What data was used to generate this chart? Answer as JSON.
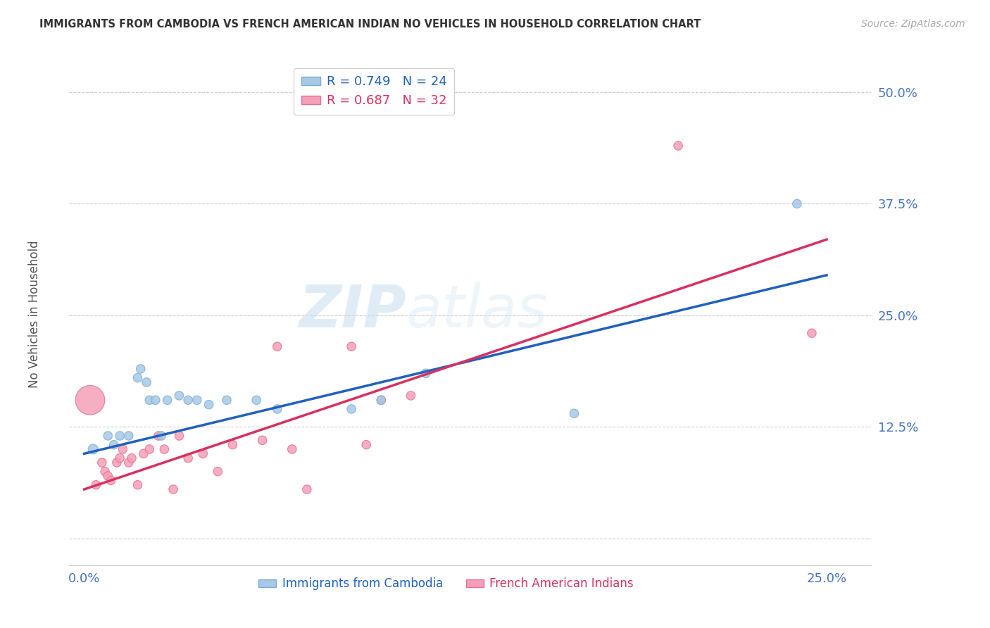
{
  "title": "IMMIGRANTS FROM CAMBODIA VS FRENCH AMERICAN INDIAN NO VEHICLES IN HOUSEHOLD CORRELATION CHART",
  "source": "Source: ZipAtlas.com",
  "xlabel_ticks": [
    0.0,
    0.05,
    0.1,
    0.15,
    0.2,
    0.25
  ],
  "xlabel_tick_labels": [
    "0.0%",
    "",
    "",
    "",
    "",
    "25.0%"
  ],
  "ylabel_ticks": [
    0.0,
    0.125,
    0.25,
    0.375,
    0.5
  ],
  "ylabel_tick_labels": [
    "",
    "12.5%",
    "25.0%",
    "37.5%",
    "50.0%"
  ],
  "xlim": [
    -0.005,
    0.265
  ],
  "ylim": [
    -0.03,
    0.54
  ],
  "ylabel": "No Vehicles in Household",
  "legend_label1": "R = 0.749   N = 24",
  "legend_label2": "R = 0.687   N = 32",
  "legend_label_bottom1": "Immigrants from Cambodia",
  "legend_label_bottom2": "French American Indians",
  "watermark_zip": "ZIP",
  "watermark_atlas": "atlas",
  "blue_color": "#a8c8e8",
  "pink_color": "#f4a0b8",
  "blue_edge_color": "#7aaed0",
  "pink_edge_color": "#e87090",
  "blue_line_color": "#2060c0",
  "pink_line_color": "#d83060",
  "title_color": "#333333",
  "axis_tick_color": "#4472c4",
  "blue_scatter_x": [
    0.003,
    0.008,
    0.01,
    0.012,
    0.015,
    0.018,
    0.019,
    0.021,
    0.022,
    0.024,
    0.026,
    0.028,
    0.032,
    0.035,
    0.038,
    0.042,
    0.048,
    0.058,
    0.065,
    0.09,
    0.1,
    0.115,
    0.165,
    0.24
  ],
  "blue_scatter_y": [
    0.1,
    0.115,
    0.105,
    0.115,
    0.115,
    0.18,
    0.19,
    0.175,
    0.155,
    0.155,
    0.115,
    0.155,
    0.16,
    0.155,
    0.155,
    0.15,
    0.155,
    0.155,
    0.145,
    0.145,
    0.155,
    0.185,
    0.14,
    0.375
  ],
  "blue_scatter_sizes": [
    100,
    80,
    80,
    80,
    80,
    80,
    80,
    80,
    80,
    80,
    80,
    80,
    80,
    80,
    80,
    80,
    80,
    80,
    80,
    80,
    80,
    80,
    80,
    80
  ],
  "pink_scatter_x": [
    0.002,
    0.004,
    0.006,
    0.007,
    0.008,
    0.009,
    0.011,
    0.012,
    0.013,
    0.015,
    0.016,
    0.018,
    0.02,
    0.022,
    0.025,
    0.027,
    0.03,
    0.032,
    0.035,
    0.04,
    0.045,
    0.05,
    0.06,
    0.065,
    0.07,
    0.075,
    0.09,
    0.095,
    0.1,
    0.11,
    0.2,
    0.245
  ],
  "pink_scatter_y": [
    0.155,
    0.06,
    0.085,
    0.075,
    0.07,
    0.065,
    0.085,
    0.09,
    0.1,
    0.085,
    0.09,
    0.06,
    0.095,
    0.1,
    0.115,
    0.1,
    0.055,
    0.115,
    0.09,
    0.095,
    0.075,
    0.105,
    0.11,
    0.215,
    0.1,
    0.055,
    0.215,
    0.105,
    0.155,
    0.16,
    0.44,
    0.23
  ],
  "pink_scatter_sizes": [
    900,
    80,
    80,
    80,
    80,
    80,
    80,
    80,
    80,
    80,
    80,
    80,
    80,
    80,
    80,
    80,
    80,
    80,
    80,
    80,
    80,
    80,
    80,
    80,
    80,
    80,
    80,
    80,
    80,
    80,
    80,
    80
  ],
  "blue_line_x": [
    0.0,
    0.25
  ],
  "blue_line_y": [
    0.095,
    0.295
  ],
  "pink_line_x": [
    0.0,
    0.25
  ],
  "pink_line_y": [
    0.055,
    0.335
  ],
  "background_color": "#ffffff",
  "grid_color": "#c8c8c8"
}
